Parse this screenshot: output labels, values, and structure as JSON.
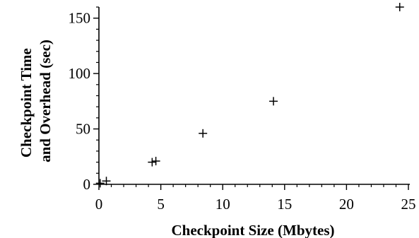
{
  "chart_data": {
    "type": "scatter",
    "title": "",
    "xlabel": "Checkpoint Size (Mbytes)",
    "ylabel": [
      "Checkpoint Time",
      "and Overhead (sec)"
    ],
    "xlim": [
      0,
      25
    ],
    "ylim": [
      0,
      160
    ],
    "xticks": [
      0,
      5,
      10,
      15,
      20,
      25
    ],
    "yticks": [
      0,
      50,
      100,
      150
    ],
    "x_minor_step": 1,
    "y_minor_step": 10,
    "grid": false,
    "legend": "none",
    "marker": "+",
    "color": "#000000",
    "series": [
      {
        "x": [
          0.1,
          0.6,
          4.3,
          4.6,
          8.4,
          14.1,
          24.3
        ],
        "y": [
          1,
          3,
          20,
          21,
          46,
          75,
          160
        ]
      }
    ]
  }
}
